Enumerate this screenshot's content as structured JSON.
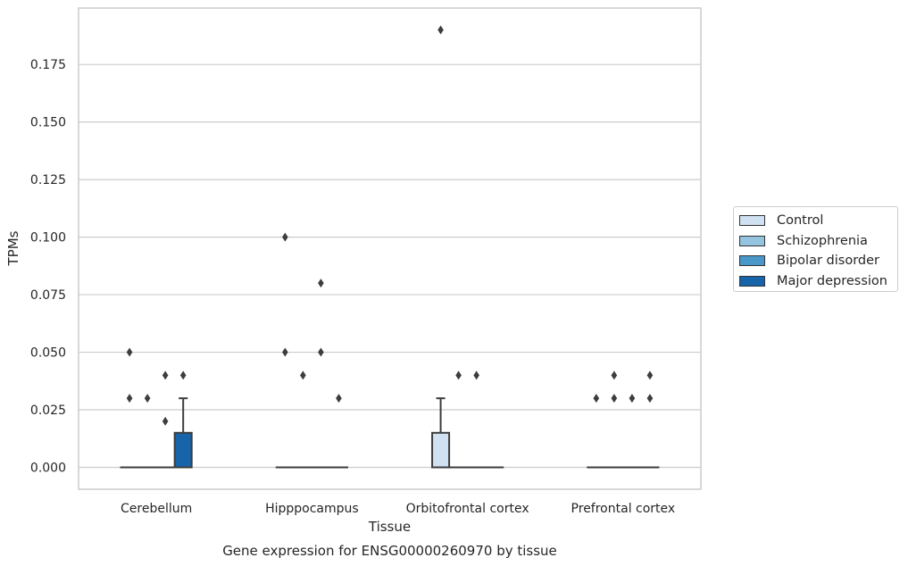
{
  "chart_data": {
    "type": "box",
    "title": "Gene expression for ENSG00000260970 by tissue",
    "xlabel": "Tissue",
    "ylabel": "TPMs",
    "ylim": [
      -0.0095,
      0.1995
    ],
    "yticks": [
      "0.000",
      "0.025",
      "0.050",
      "0.075",
      "0.100",
      "0.125",
      "0.150",
      "0.175"
    ],
    "categories": [
      "Cerebellum",
      "Hipppocampus",
      "Orbitofrontal cortex",
      "Prefrontal cortex"
    ],
    "grid": "horizontal",
    "legend_position": "right",
    "series": [
      {
        "name": "Control",
        "color": "#d0e1f2",
        "boxes": [
          {
            "q1": 0,
            "median": 0,
            "q3": 0,
            "whisker_low": 0,
            "whisker_high": 0,
            "outliers": [
              0.03,
              0.05
            ]
          },
          {
            "q1": 0,
            "median": 0,
            "q3": 0,
            "whisker_low": 0,
            "whisker_high": 0,
            "outliers": [
              0.05,
              0.1
            ]
          },
          {
            "q1": 0,
            "median": 0,
            "q3": 0.015,
            "whisker_low": 0,
            "whisker_high": 0.03,
            "outliers": [
              0.19
            ]
          },
          {
            "q1": 0,
            "median": 0,
            "q3": 0,
            "whisker_low": 0,
            "whisker_high": 0,
            "outliers": [
              0.03
            ]
          }
        ]
      },
      {
        "name": "Schizophrenia",
        "color": "#94c4df",
        "boxes": [
          {
            "q1": 0,
            "median": 0,
            "q3": 0,
            "whisker_low": 0,
            "whisker_high": 0,
            "outliers": [
              0.03
            ]
          },
          {
            "q1": 0,
            "median": 0,
            "q3": 0,
            "whisker_low": 0,
            "whisker_high": 0,
            "outliers": [
              0.04
            ]
          },
          {
            "q1": 0,
            "median": 0,
            "q3": 0,
            "whisker_low": 0,
            "whisker_high": 0,
            "outliers": [
              0.04
            ]
          },
          {
            "q1": 0,
            "median": 0,
            "q3": 0,
            "whisker_low": 0,
            "whisker_high": 0,
            "outliers": [
              0.03,
              0.04
            ]
          }
        ]
      },
      {
        "name": "Bipolar disorder",
        "color": "#4a98c9",
        "boxes": [
          {
            "q1": 0,
            "median": 0,
            "q3": 0,
            "whisker_low": 0,
            "whisker_high": 0,
            "outliers": [
              0.02,
              0.04
            ]
          },
          {
            "q1": 0,
            "median": 0,
            "q3": 0,
            "whisker_low": 0,
            "whisker_high": 0,
            "outliers": [
              0.05,
              0.08
            ]
          },
          {
            "q1": 0,
            "median": 0,
            "q3": 0,
            "whisker_low": 0,
            "whisker_high": 0,
            "outliers": [
              0.04
            ]
          },
          {
            "q1": 0,
            "median": 0,
            "q3": 0,
            "whisker_low": 0,
            "whisker_high": 0,
            "outliers": [
              0.03
            ]
          }
        ]
      },
      {
        "name": "Major depression",
        "color": "#1764ab",
        "boxes": [
          {
            "q1": 0,
            "median": 0,
            "q3": 0.015,
            "whisker_low": 0,
            "whisker_high": 0.03,
            "outliers": [
              0.04
            ]
          },
          {
            "q1": 0,
            "median": 0,
            "q3": 0,
            "whisker_low": 0,
            "whisker_high": 0,
            "outliers": [
              0.03
            ]
          },
          {
            "q1": 0,
            "median": 0,
            "q3": 0,
            "whisker_low": 0,
            "whisker_high": 0,
            "outliers": []
          },
          {
            "q1": 0,
            "median": 0,
            "q3": 0,
            "whisker_low": 0,
            "whisker_high": 0,
            "outliers": [
              0.03,
              0.04
            ]
          }
        ]
      }
    ]
  }
}
